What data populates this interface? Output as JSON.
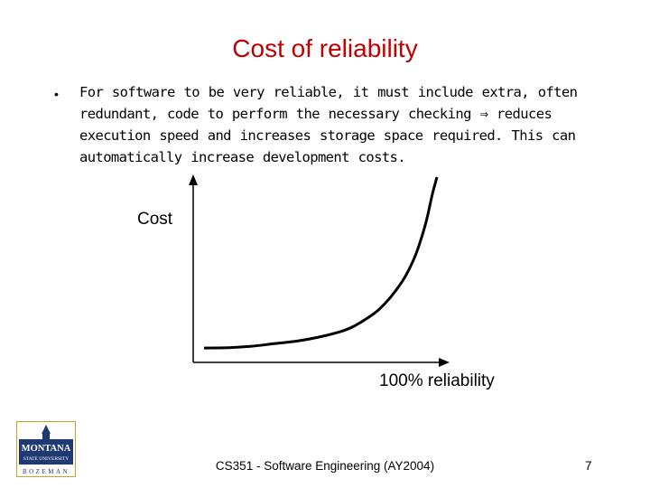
{
  "slide": {
    "title": "Cost of reliability",
    "title_color": "#c00000",
    "bullet_marker": "•",
    "bullet_lines": [
      "For software to be very reliable, it must include extra, often",
      "redundant, code to perform the necessary checking ⇒ reduces",
      "execution speed and increases storage space required.  This can",
      "automatically increase development costs."
    ]
  },
  "chart_data": {
    "type": "line",
    "title": "",
    "xlabel": "100% reliability",
    "ylabel": "Cost",
    "x": [
      0,
      0.1,
      0.2,
      0.3,
      0.4,
      0.5,
      0.6,
      0.65,
      0.7,
      0.75,
      0.8,
      0.85,
      0.88,
      0.91,
      0.94,
      0.96,
      0.98,
      1.0
    ],
    "series": [
      {
        "values": [
          0.02,
          0.022,
          0.03,
          0.045,
          0.06,
          0.085,
          0.12,
          0.15,
          0.19,
          0.24,
          0.31,
          0.4,
          0.47,
          0.56,
          0.68,
          0.78,
          0.9,
          1.0
        ]
      }
    ],
    "xlim": [
      0,
      1
    ],
    "ylim": [
      0,
      1
    ],
    "grid": false,
    "line_color": "#000000"
  },
  "logo": {
    "brand_color": "#1f3a73",
    "accent_color": "#c9a227",
    "wordmark": "MONTANA",
    "subline": "STATE UNIVERSITY",
    "city": "BOZEMAN"
  },
  "footer": {
    "course": "CS351 - Software Engineering (AY2004)",
    "page_number": "7"
  }
}
